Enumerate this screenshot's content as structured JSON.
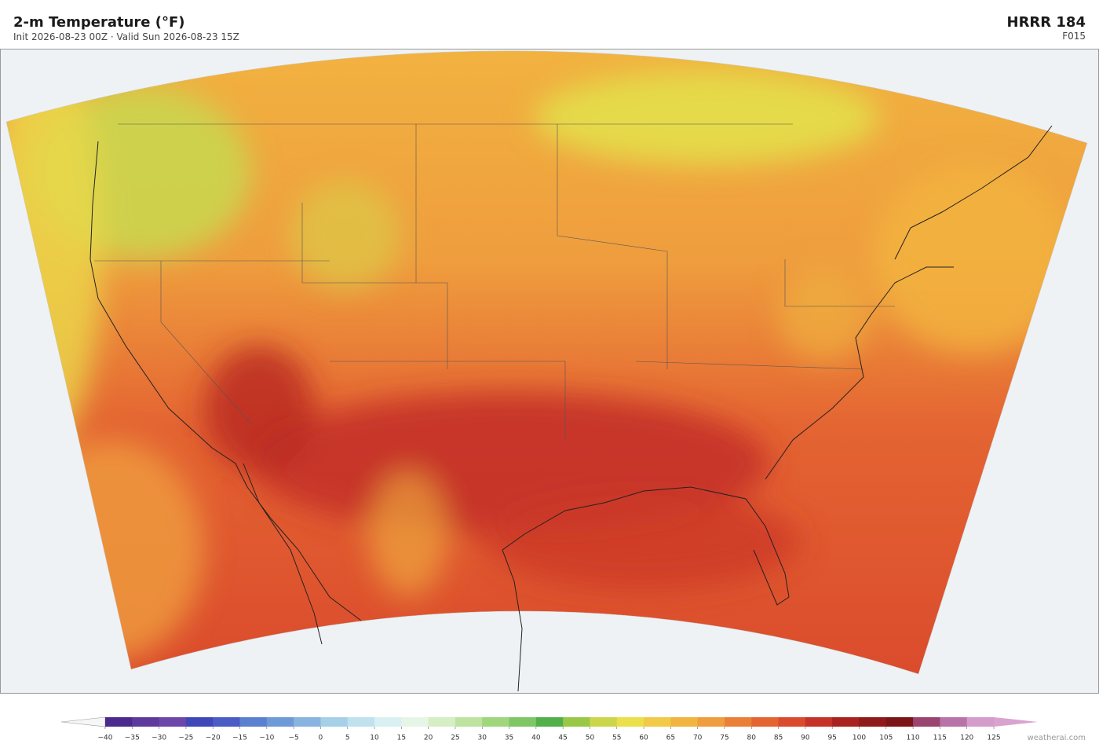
{
  "header": {
    "title": "2-m Temperature  (°F)",
    "subtitle": "Init 2026-08-23 00Z  ·  Valid Sun 2026-08-23 15Z",
    "model": "HRRR  184",
    "forecast_hour": "F015"
  },
  "colorbar": {
    "ticks": [
      {
        "value": -40,
        "label": "−40"
      },
      {
        "value": -35,
        "label": "−35"
      },
      {
        "value": -30,
        "label": "−30"
      },
      {
        "value": -25,
        "label": "−25"
      },
      {
        "value": -20,
        "label": "−20"
      },
      {
        "value": -15,
        "label": "−15"
      },
      {
        "value": -10,
        "label": "−10"
      },
      {
        "value": -5,
        "label": "−5"
      },
      0,
      5,
      10,
      15,
      20,
      25,
      30,
      35,
      40,
      45,
      50,
      55,
      60,
      65,
      70,
      75,
      80,
      85,
      90,
      95,
      100,
      105,
      110,
      115,
      120,
      125
    ],
    "colors": [
      "#4a2a8c",
      "#5e3a9c",
      "#6d46aa",
      "#4047b8",
      "#4a5dc4",
      "#5b80cf",
      "#6e9ad8",
      "#88b4df",
      "#a6d0e8",
      "#c0e2ef",
      "#d8f0f2",
      "#e6f6e6",
      "#d6eec4",
      "#bde39e",
      "#9fd67e",
      "#7ec666",
      "#52b04a",
      "#98c846",
      "#cbd64a",
      "#ebe04a",
      "#f3c94a",
      "#f2b440",
      "#ef9d3e",
      "#ea8038",
      "#e46432",
      "#da4a2c",
      "#c43228",
      "#a8221f",
      "#8e1a1c",
      "#7a1618",
      "#9a4470",
      "#b874a8",
      "#d49ccb"
    ],
    "under_color": "#f6f6f6",
    "over_color": "#d9a3cf"
  },
  "watermark": "weatherai.com"
}
